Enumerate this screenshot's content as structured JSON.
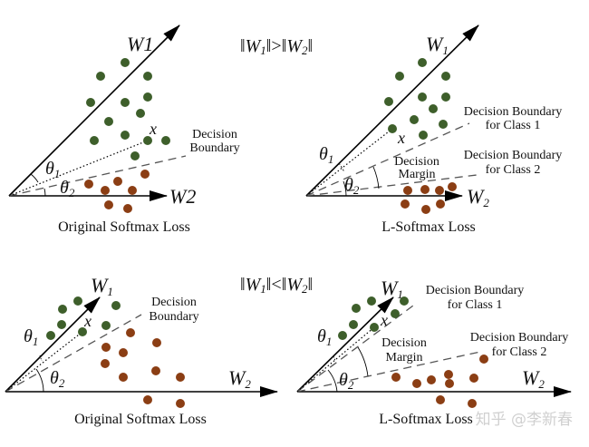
{
  "figure": {
    "conditions": {
      "top": "‖W1‖>‖W2‖",
      "bottom": "‖W1‖<‖W2‖"
    },
    "colors": {
      "class1": "#3e5f2b",
      "class2": "#8b3e14",
      "axis": "#000000",
      "boundary": "#555555"
    },
    "panels": [
      {
        "id": "top-left",
        "caption": "Original Softmax Loss",
        "w1_label": "W1",
        "w2_label": "W2",
        "x_label": "x",
        "theta1_label": "θ1",
        "theta2_label": "θ2",
        "boundary_labels": [
          "Decision",
          "Boundary"
        ]
      },
      {
        "id": "top-right",
        "caption": "L-Softmax Loss",
        "w1_label": "W1",
        "w2_label": "W2",
        "x_label": "x",
        "theta1_label": "θ1",
        "theta2_label": "θ2",
        "boundary1_labels": [
          "Decision Boundary",
          "for Class 1"
        ],
        "boundary2_labels": [
          "Decision Boundary",
          "for Class 2"
        ],
        "margin_labels": [
          "Decision",
          "Margin"
        ]
      },
      {
        "id": "bottom-left",
        "caption": "Original Softmax Loss",
        "w1_label": "W1",
        "w2_label": "W2",
        "x_label": "x",
        "theta1_label": "θ1",
        "theta2_label": "θ2",
        "boundary_labels": [
          "Decision",
          "Boundary"
        ]
      },
      {
        "id": "bottom-right",
        "caption": "L-Softmax Loss",
        "w1_label": "W1",
        "w2_label": "W2",
        "x_label": "x",
        "theta1_label": "θ1",
        "theta2_label": "θ2",
        "boundary1_labels": [
          "Decision Boundary",
          "for Class 1"
        ],
        "boundary2_labels": [
          "Decision Boundary",
          "for Class 2"
        ],
        "margin_labels": [
          "Decision",
          "Margin"
        ]
      }
    ],
    "watermark": "知乎 @李新春"
  }
}
